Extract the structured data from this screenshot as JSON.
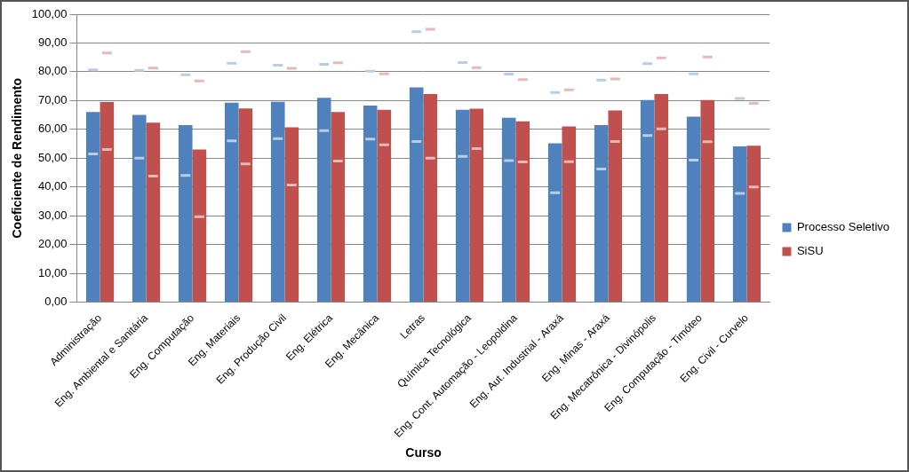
{
  "chart_data": {
    "type": "bar",
    "x_label": "Curso",
    "y_label": "Coeficiente de Rendimento",
    "categories": [
      "Administração",
      "Eng. Ambiental e Sanitária",
      "Eng. Computação",
      "Eng. Materiais",
      "Eng. Produção Civil",
      "Eng. Elétrica",
      "Eng. Mecânica",
      "Letras",
      "Química Tecnológica",
      "Eng. Cont. Automação - Leopoldina",
      "Eng. Aut. Industrial - Araxá",
      "Eng. Minas - Araxá",
      "Eng. Mecatrônica - Divinópolis",
      "Eng. Computação - Timóteo",
      "Eng. Civil - Curvelo"
    ],
    "series": [
      {
        "name": "Processo Seletivo",
        "color": "#4f81bd",
        "values": [
          66.0,
          65.0,
          61.5,
          69.3,
          69.6,
          71.0,
          68.3,
          74.6,
          66.8,
          64.0,
          55.2,
          61.5,
          70.2,
          64.4,
          54.1
        ],
        "upper": [
          80.7,
          80.5,
          79.0,
          83.0,
          82.3,
          82.6,
          80.2,
          93.9,
          83.2,
          79.2,
          72.8,
          77.1,
          82.8,
          79.3,
          70.7
        ],
        "lower": [
          51.5,
          50.0,
          44.0,
          56.0,
          56.8,
          59.6,
          56.6,
          55.8,
          50.6,
          49.2,
          38.0,
          46.2,
          57.9,
          49.3,
          37.8
        ]
      },
      {
        "name": "SiSU",
        "color": "#c0504d",
        "values": [
          69.5,
          62.3,
          53.0,
          67.3,
          60.7,
          66.0,
          66.8,
          72.3,
          67.2,
          62.8,
          61.0,
          66.6,
          72.3,
          70.2,
          54.3
        ],
        "upper": [
          86.5,
          81.3,
          76.8,
          87.0,
          81.2,
          83.1,
          79.3,
          94.8,
          81.4,
          77.3,
          73.7,
          77.5,
          84.8,
          85.1,
          69.0
        ],
        "lower": [
          53.0,
          43.8,
          29.7,
          48.0,
          40.7,
          49.0,
          54.6,
          50.0,
          53.3,
          48.7,
          48.8,
          55.8,
          60.2,
          55.7,
          40.0
        ]
      }
    ],
    "ylim": [
      0,
      100
    ],
    "yticks": [
      {
        "value": 0,
        "label": "0,00"
      },
      {
        "value": 10,
        "label": "10,00"
      },
      {
        "value": 20,
        "label": "20,00"
      },
      {
        "value": 30,
        "label": "30,00"
      },
      {
        "value": 40,
        "label": "40,00"
      },
      {
        "value": 50,
        "label": "50,00"
      },
      {
        "value": 60,
        "label": "60,00"
      },
      {
        "value": 70,
        "label": "70,00"
      },
      {
        "value": 80,
        "label": "80,00"
      },
      {
        "value": 90,
        "label": "90,00"
      },
      {
        "value": 100,
        "label": "100,00"
      }
    ],
    "grid": true,
    "legend": "right"
  }
}
